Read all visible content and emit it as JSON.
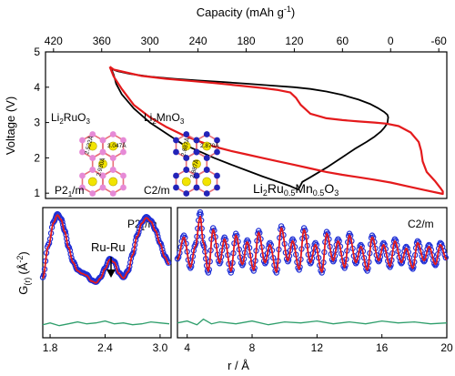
{
  "chart_data": [
    {
      "type": "line",
      "xlabel": "Capacity (mAh g",
      "xlabel_sup": "-1",
      "xlabel_close": ")",
      "ylabel": "Voltage (V)",
      "xlim": [
        430,
        -70
      ],
      "ylim": [
        0.85,
        5
      ],
      "xticks": [
        "420",
        "360",
        "300",
        "240",
        "180",
        "120",
        "60",
        "0",
        "-60"
      ],
      "xtick_values": [
        420,
        360,
        300,
        240,
        180,
        120,
        60,
        0,
        -60
      ],
      "yticks": [
        "1",
        "2",
        "3",
        "4",
        "5"
      ],
      "ytick_values": [
        1,
        2,
        3,
        4,
        5
      ],
      "series": [
        {
          "color": "#000000",
          "x": [
            348,
            340,
            325,
            300,
            270,
            240,
            210,
            180,
            150,
            120,
            100,
            80,
            60,
            40,
            25,
            15,
            8,
            4,
            3,
            4,
            8,
            12,
            20,
            30,
            45,
            60,
            80,
            100,
            110,
            115,
            125,
            140,
            160,
            180,
            200,
            220,
            240,
            260,
            280,
            300,
            320,
            335,
            342,
            345,
            348
          ],
          "y": [
            4.52,
            4.45,
            4.38,
            4.3,
            4.24,
            4.19,
            4.15,
            4.1,
            4.05,
            4.0,
            3.95,
            3.88,
            3.78,
            3.65,
            3.52,
            3.4,
            3.3,
            3.22,
            3.15,
            2.98,
            2.85,
            2.75,
            2.6,
            2.45,
            2.25,
            2.02,
            1.72,
            1.45,
            1.32,
            1.1,
            1.2,
            1.32,
            1.48,
            1.65,
            1.82,
            2.0,
            2.2,
            2.4,
            2.7,
            3.0,
            3.4,
            3.8,
            4.1,
            4.35,
            4.52
          ]
        },
        {
          "color": "#e41a1c",
          "x": [
            350,
            345,
            330,
            310,
            280,
            250,
            220,
            190,
            160,
            140,
            125,
            118,
            112,
            100,
            80,
            60,
            40,
            20,
            5,
            -10,
            -25,
            -35,
            -38,
            -40,
            -45,
            -55,
            -62,
            -65,
            -65,
            -40,
            -20,
            0,
            20,
            40,
            60,
            80,
            100,
            120,
            140,
            160,
            180,
            200,
            220,
            240,
            260,
            280,
            300,
            320,
            335,
            345,
            350
          ],
          "y": [
            4.58,
            4.5,
            4.42,
            4.32,
            4.24,
            4.18,
            4.12,
            4.05,
            3.98,
            3.92,
            3.85,
            3.7,
            3.5,
            3.25,
            3.12,
            3.07,
            3.03,
            3.0,
            2.97,
            2.9,
            2.72,
            2.45,
            2.2,
            1.9,
            1.6,
            1.35,
            1.15,
            1.05,
            0.98,
            1.1,
            1.2,
            1.3,
            1.38,
            1.45,
            1.52,
            1.6,
            1.7,
            1.8,
            1.9,
            2.0,
            2.1,
            2.2,
            2.32,
            2.48,
            2.66,
            2.88,
            3.15,
            3.5,
            3.95,
            4.3,
            4.58
          ]
        }
      ],
      "annotations": {
        "compound": "Li2Ru0.5Mn0.5O3",
        "compound_parts": [
          "Li",
          "2",
          "Ru",
          "0.5",
          "Mn",
          "0.5",
          "O",
          "3"
        ],
        "inset_left": {
          "name_parts": [
            "Li",
            "2",
            "RuO",
            "3"
          ],
          "space_group_parts": [
            "P2",
            "1",
            "/m"
          ],
          "distances": [
            "2.522Å",
            "3.047Å",
            "2.930Å"
          ]
        },
        "inset_right": {
          "name_parts": [
            "Li",
            "2",
            "MnO",
            "3"
          ],
          "space_group": "C2/m",
          "distances": [
            "2.887Å",
            "2.870Å",
            "2.887Å"
          ]
        }
      }
    },
    {
      "type": "scatter",
      "xlabel": "",
      "ylabel": "G",
      "ylabel_sub": "(r)",
      "ylabel_unit": "(Å",
      "ylabel_sup": "-2",
      "ylabel_close": ")",
      "xlim": [
        1.72,
        3.12
      ],
      "xticks": [
        "1.8",
        "2.4",
        "3.0"
      ],
      "xtick_values": [
        1.8,
        2.4,
        3.0
      ],
      "label_parts": [
        "P2",
        "1",
        "/m"
      ],
      "annotation": "Ru-Ru",
      "annotation_x": 2.47,
      "series": [
        {
          "kind": "observed",
          "color": "#1f2fd6",
          "x": [
            1.72,
            1.78,
            1.84,
            1.88,
            1.92,
            1.96,
            2.0,
            2.05,
            2.1,
            2.15,
            2.2,
            2.25,
            2.3,
            2.35,
            2.4,
            2.45,
            2.5,
            2.55,
            2.6,
            2.65,
            2.7,
            2.75,
            2.8,
            2.85,
            2.9,
            2.95,
            3.0,
            3.05,
            3.1
          ],
          "y": [
            0.25,
            0.6,
            0.85,
            0.93,
            0.88,
            0.75,
            0.58,
            0.42,
            0.33,
            0.3,
            0.28,
            0.22,
            0.2,
            0.25,
            0.35,
            0.45,
            0.42,
            0.3,
            0.25,
            0.32,
            0.5,
            0.7,
            0.84,
            0.9,
            0.86,
            0.76,
            0.62,
            0.48,
            0.4
          ]
        },
        {
          "kind": "fit",
          "color": "#e41a1c",
          "x": [
            1.72,
            1.78,
            1.84,
            1.88,
            1.92,
            1.96,
            2.0,
            2.05,
            2.1,
            2.15,
            2.2,
            2.25,
            2.3,
            2.35,
            2.4,
            2.45,
            2.5,
            2.55,
            2.6,
            2.65,
            2.7,
            2.75,
            2.8,
            2.85,
            2.9,
            2.95,
            3.0,
            3.05,
            3.1
          ],
          "y": [
            0.24,
            0.58,
            0.84,
            0.92,
            0.87,
            0.74,
            0.57,
            0.41,
            0.32,
            0.29,
            0.27,
            0.21,
            0.19,
            0.24,
            0.34,
            0.44,
            0.41,
            0.29,
            0.24,
            0.31,
            0.49,
            0.69,
            0.83,
            0.89,
            0.85,
            0.75,
            0.61,
            0.47,
            0.39
          ]
        },
        {
          "kind": "difference",
          "color": "#2e9e6b",
          "x": [
            1.72,
            1.8,
            1.9,
            2.0,
            2.1,
            2.2,
            2.3,
            2.4,
            2.5,
            2.6,
            2.7,
            2.8,
            2.9,
            3.0,
            3.1
          ],
          "y": [
            -0.26,
            -0.24,
            -0.27,
            -0.25,
            -0.23,
            -0.25,
            -0.24,
            -0.22,
            -0.25,
            -0.24,
            -0.26,
            -0.25,
            -0.23,
            -0.24,
            -0.25
          ]
        }
      ]
    },
    {
      "type": "scatter",
      "xlabel": "r / Å",
      "xlim": [
        3.4,
        20
      ],
      "xticks": [
        "4",
        "8",
        "12",
        "16",
        "20"
      ],
      "xtick_values": [
        4,
        8,
        12,
        16,
        20
      ],
      "label": "C2/m",
      "series": [
        {
          "kind": "observed",
          "color": "#1f2fd6",
          "x": [
            3.4,
            3.8,
            4.2,
            4.5,
            4.8,
            5.0,
            5.3,
            5.6,
            6.0,
            6.3,
            6.7,
            7.0,
            7.4,
            7.7,
            8.1,
            8.4,
            8.8,
            9.1,
            9.5,
            9.8,
            10.2,
            10.5,
            10.9,
            11.2,
            11.6,
            11.9,
            12.3,
            12.6,
            13.0,
            13.3,
            13.7,
            14.0,
            14.4,
            14.7,
            15.1,
            15.4,
            15.8,
            16.1,
            16.5,
            16.8,
            17.2,
            17.5,
            17.9,
            18.2,
            18.6,
            18.9,
            19.3,
            19.6,
            20.0
          ],
          "y": [
            0.45,
            0.7,
            0.35,
            0.6,
            0.95,
            0.6,
            0.3,
            0.78,
            0.4,
            0.68,
            0.3,
            0.72,
            0.38,
            0.65,
            0.32,
            0.75,
            0.4,
            0.62,
            0.3,
            0.8,
            0.42,
            0.66,
            0.33,
            0.78,
            0.4,
            0.62,
            0.3,
            0.74,
            0.42,
            0.66,
            0.35,
            0.72,
            0.4,
            0.6,
            0.32,
            0.7,
            0.42,
            0.62,
            0.36,
            0.66,
            0.4,
            0.58,
            0.34,
            0.64,
            0.42,
            0.6,
            0.38,
            0.62,
            0.45
          ]
        },
        {
          "kind": "fit",
          "color": "#e41a1c",
          "x": [
            3.4,
            3.8,
            4.2,
            4.5,
            4.8,
            5.0,
            5.3,
            5.6,
            6.0,
            6.3,
            6.7,
            7.0,
            7.4,
            7.7,
            8.1,
            8.4,
            8.8,
            9.1,
            9.5,
            9.8,
            10.2,
            10.5,
            10.9,
            11.2,
            11.6,
            11.9,
            12.3,
            12.6,
            13.0,
            13.3,
            13.7,
            14.0,
            14.4,
            14.7,
            15.1,
            15.4,
            15.8,
            16.1,
            16.5,
            16.8,
            17.2,
            17.5,
            17.9,
            18.2,
            18.6,
            18.9,
            19.3,
            19.6,
            20.0
          ],
          "y": [
            0.44,
            0.68,
            0.36,
            0.58,
            0.9,
            0.62,
            0.32,
            0.76,
            0.41,
            0.66,
            0.32,
            0.7,
            0.39,
            0.63,
            0.33,
            0.73,
            0.41,
            0.6,
            0.31,
            0.78,
            0.43,
            0.64,
            0.34,
            0.76,
            0.41,
            0.6,
            0.31,
            0.72,
            0.43,
            0.64,
            0.36,
            0.7,
            0.41,
            0.58,
            0.33,
            0.68,
            0.43,
            0.6,
            0.37,
            0.64,
            0.41,
            0.56,
            0.35,
            0.62,
            0.43,
            0.58,
            0.39,
            0.6,
            0.44
          ]
        },
        {
          "kind": "difference",
          "color": "#2e9e6b",
          "x": [
            3.4,
            4.0,
            4.6,
            5.0,
            5.5,
            6.0,
            7.0,
            8.0,
            9.0,
            10.0,
            11.0,
            12.0,
            13.0,
            14.0,
            15.0,
            16.0,
            17.0,
            18.0,
            19.0,
            20.0
          ],
          "y": [
            -0.24,
            -0.22,
            -0.26,
            -0.2,
            -0.25,
            -0.23,
            -0.25,
            -0.22,
            -0.26,
            -0.23,
            -0.24,
            -0.22,
            -0.25,
            -0.23,
            -0.25,
            -0.22,
            -0.24,
            -0.23,
            -0.25,
            -0.24
          ]
        }
      ]
    }
  ]
}
